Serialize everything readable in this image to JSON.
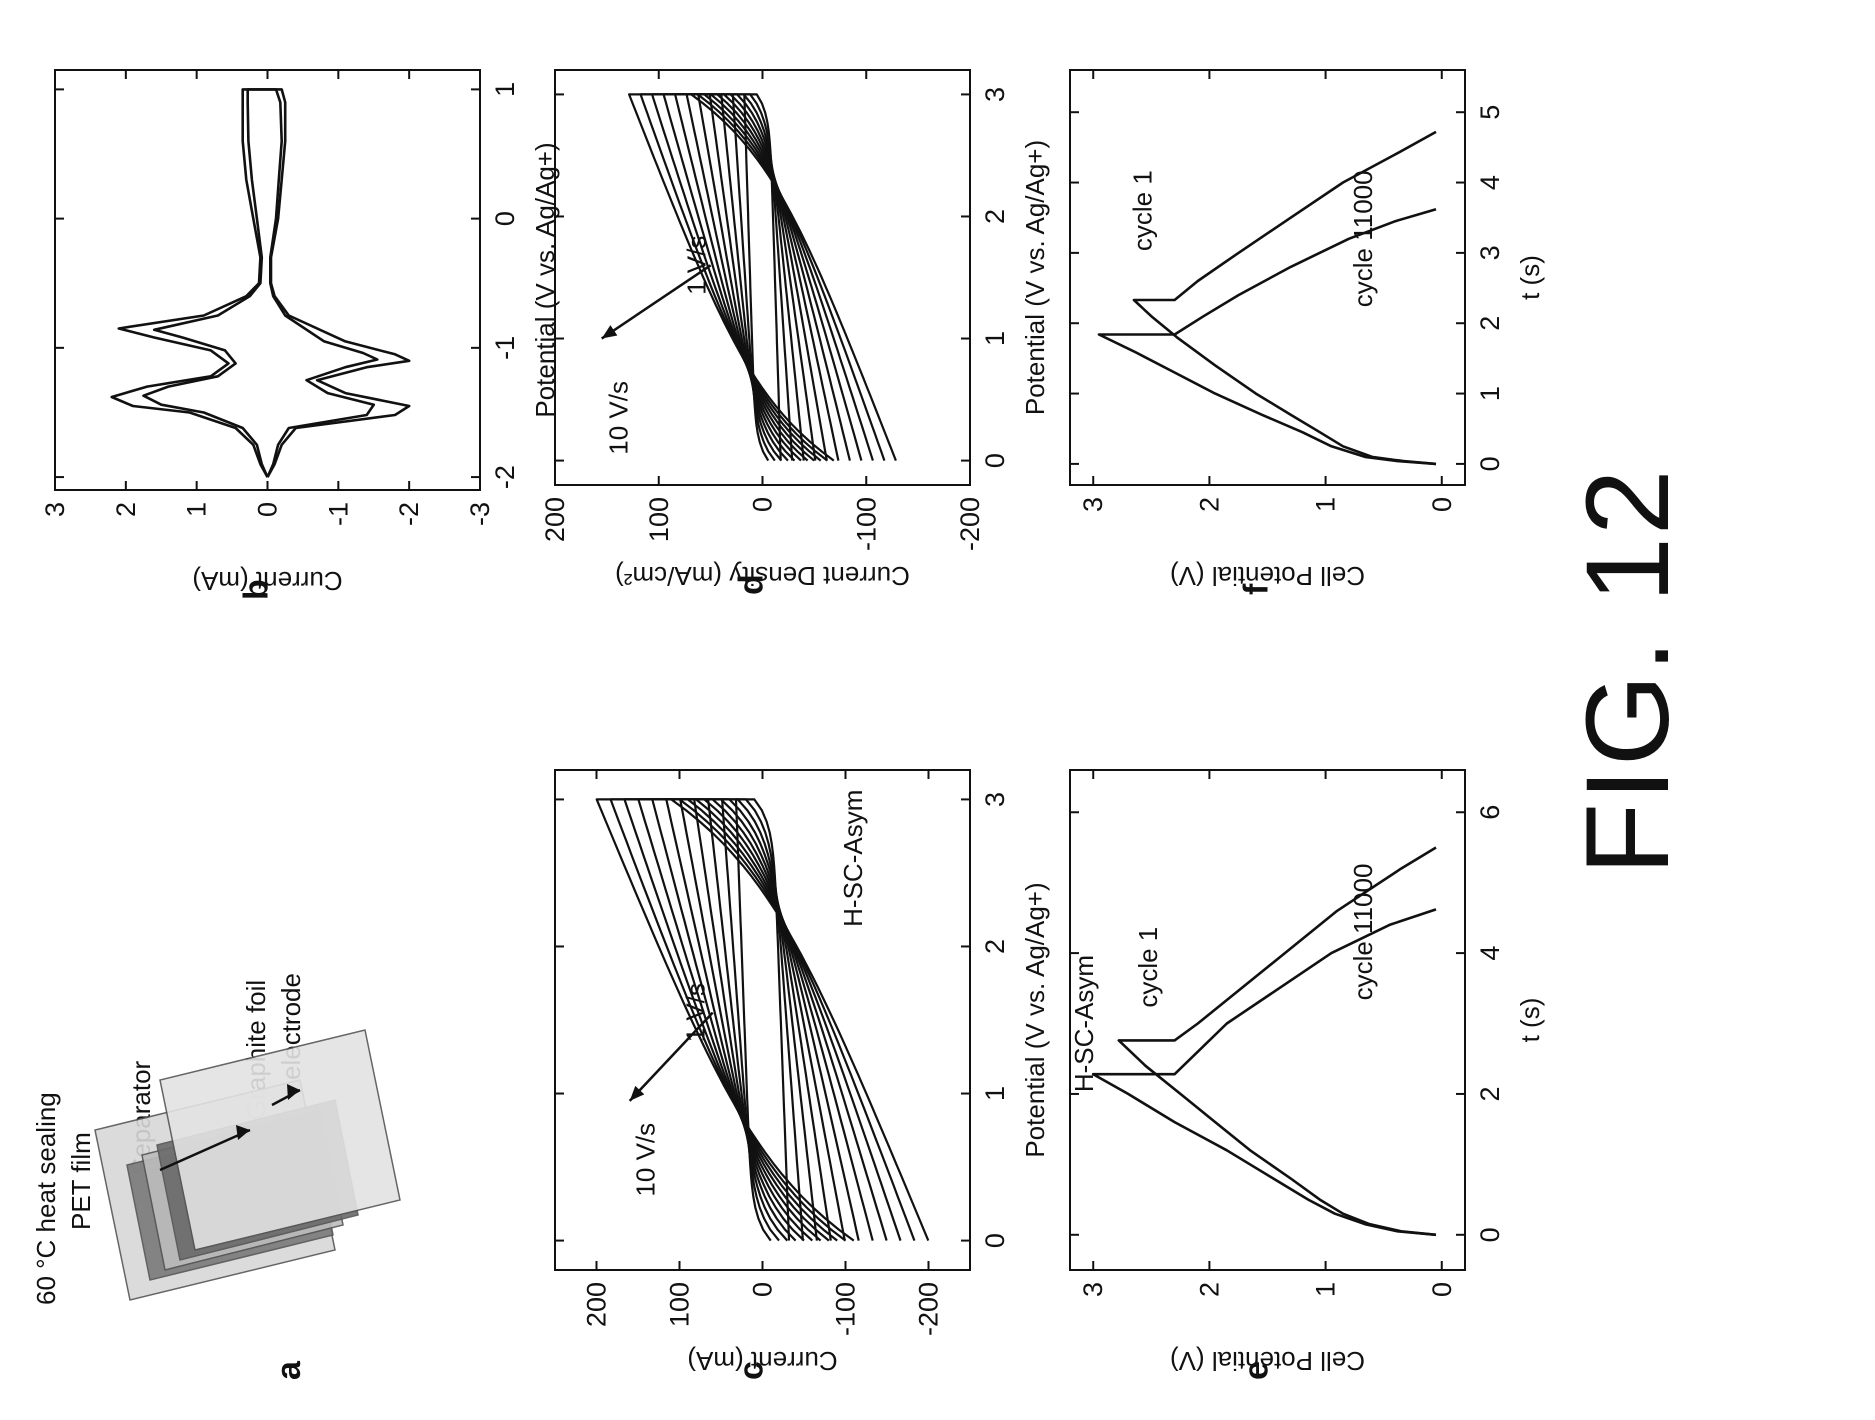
{
  "figure": {
    "label": "FIG. 12"
  },
  "panel_a": {
    "letter": "a",
    "labels": {
      "pet_line1": "60 °C heat sealing",
      "pet_line2": "PET film",
      "separator": "Separator",
      "graphite_line1": "Graphite foil",
      "graphite_line2": "electrode"
    }
  },
  "chart_data": [
    {
      "id": "b",
      "type": "line",
      "panel_label": "b",
      "xlabel": "Potential (V vs. Ag/Ag+)",
      "ylabel": "Current (mA)",
      "xlim": [
        -2.1,
        1.15
      ],
      "ylim": [
        -3,
        3
      ],
      "xticks": [
        -2,
        -1,
        0,
        1
      ],
      "xtick_labels": [
        "-2",
        "-1",
        "0",
        "1"
      ],
      "yticks": [
        -3,
        -2,
        -1,
        0,
        1,
        2,
        3
      ],
      "ytick_labels": [
        "-3",
        "-2",
        "-1",
        "0",
        "1",
        "2",
        "3"
      ],
      "grid": false,
      "annotations": [],
      "series": [
        {
          "x": [
            -2.0,
            -1.9,
            -1.75,
            -1.62,
            -1.5,
            -1.45,
            -1.38,
            -1.3,
            -1.22,
            -1.12,
            -1.02,
            -0.92,
            -0.85,
            -0.75,
            -0.6,
            -0.5,
            -0.3,
            0.0,
            0.3,
            0.6,
            0.9,
            1.0,
            1.0,
            0.9,
            0.6,
            0.3,
            0.0,
            -0.3,
            -0.5,
            -0.6,
            -0.75,
            -0.95,
            -1.05,
            -1.1,
            -1.15,
            -1.25,
            -1.35,
            -1.45,
            -1.52,
            -1.62,
            -1.75,
            -1.9,
            -2.0
          ],
          "y": [
            0.0,
            0.1,
            0.2,
            0.45,
            1.1,
            1.9,
            2.2,
            1.7,
            0.8,
            0.55,
            0.8,
            1.6,
            2.1,
            0.9,
            0.3,
            0.12,
            0.1,
            0.2,
            0.3,
            0.35,
            0.35,
            0.35,
            -0.2,
            -0.25,
            -0.25,
            -0.2,
            -0.15,
            -0.05,
            -0.05,
            -0.1,
            -0.3,
            -1.1,
            -1.8,
            -2.0,
            -1.4,
            -0.7,
            -1.1,
            -2.0,
            -1.8,
            -0.4,
            -0.2,
            -0.1,
            0.0
          ]
        },
        {
          "x": [
            -2.0,
            -1.9,
            -1.75,
            -1.62,
            -1.5,
            -1.44,
            -1.37,
            -1.3,
            -1.22,
            -1.12,
            -1.02,
            -0.92,
            -0.86,
            -0.75,
            -0.6,
            -0.5,
            -0.3,
            0.0,
            0.3,
            0.6,
            0.9,
            1.0,
            1.0,
            0.9,
            0.6,
            0.3,
            0.0,
            -0.3,
            -0.5,
            -0.6,
            -0.75,
            -0.95,
            -1.04,
            -1.09,
            -1.15,
            -1.25,
            -1.35,
            -1.44,
            -1.52,
            -1.62,
            -1.75,
            -1.9,
            -2.0
          ],
          "y": [
            0.0,
            0.08,
            0.15,
            0.35,
            0.9,
            1.5,
            1.75,
            1.4,
            0.7,
            0.45,
            0.6,
            1.2,
            1.6,
            0.7,
            0.25,
            0.1,
            0.08,
            0.15,
            0.22,
            0.27,
            0.28,
            0.28,
            -0.12,
            -0.18,
            -0.2,
            -0.16,
            -0.12,
            -0.04,
            -0.04,
            -0.08,
            -0.25,
            -0.8,
            -1.35,
            -1.55,
            -1.1,
            -0.55,
            -0.85,
            -1.5,
            -1.4,
            -0.3,
            -0.15,
            -0.08,
            0.0
          ]
        }
      ]
    },
    {
      "id": "c",
      "type": "line",
      "panel_label": "c",
      "xlabel": "Potential (V vs. Ag/Ag+)",
      "ylabel": "Current (mA)",
      "xlim": [
        -0.2,
        3.2
      ],
      "ylim": [
        -250,
        250
      ],
      "xticks": [
        0,
        1,
        2,
        3
      ],
      "xtick_labels": [
        "0",
        "1",
        "2",
        "3"
      ],
      "yticks": [
        -200,
        -100,
        0,
        100,
        200
      ],
      "ytick_labels": [
        "-200",
        "-100",
        "0",
        "100",
        "200"
      ],
      "grid": false,
      "annotations": [
        {
          "text": "10 V/s",
          "x": 0.55,
          "y": 130
        },
        {
          "text": "1 V/s",
          "x": 1.55,
          "y": 70
        },
        {
          "text": "H-SC-Asym",
          "x": 2.6,
          "y": -120
        }
      ],
      "arrow": {
        "from": [
          1.55,
          60
        ],
        "to": [
          0.95,
          160
        ]
      },
      "family": {
        "n": 11,
        "xmax": 3.0,
        "imin": 18,
        "imax": 200,
        "cmin": 22,
        "cmax": 90
      }
    },
    {
      "id": "d",
      "type": "line",
      "panel_label": "d",
      "xlabel": "Potential (V vs. Ag/Ag+)",
      "ylabel": "Current Density (mA/cm²)",
      "xlim": [
        -0.2,
        3.2
      ],
      "ylim": [
        -200,
        200
      ],
      "xticks": [
        0,
        1,
        2,
        3
      ],
      "xtick_labels": [
        "0",
        "1",
        "2",
        "3"
      ],
      "yticks": [
        -200,
        -100,
        0,
        100,
        200
      ],
      "ytick_labels": [
        "-200",
        "-100",
        "0",
        "100",
        "200"
      ],
      "grid": false,
      "annotations": [
        {
          "text": "10 V/s",
          "x": 0.35,
          "y": 130
        },
        {
          "text": "1 V/s",
          "x": 1.6,
          "y": 55
        },
        {
          "text": "",
          "x": 0,
          "y": 0
        }
      ],
      "arrow": {
        "from": [
          1.6,
          50
        ],
        "to": [
          1.0,
          155
        ]
      },
      "family": {
        "n": 11,
        "xmax": 3.0,
        "imin": 10,
        "imax": 125,
        "cmin": 12,
        "cmax": 60
      }
    },
    {
      "id": "e",
      "type": "line",
      "panel_label": "e",
      "xlabel": "t (s)",
      "ylabel": "Cell Potential (V)",
      "xlim": [
        -0.5,
        6.6
      ],
      "ylim": [
        -0.2,
        3.2
      ],
      "xticks": [
        0,
        2,
        4,
        6
      ],
      "xtick_labels": [
        "0",
        "2",
        "4",
        "6"
      ],
      "yticks": [
        0,
        1,
        2,
        3
      ],
      "ytick_labels": [
        "0",
        "1",
        "2",
        "3"
      ],
      "grid": false,
      "annotations": [
        {
          "text": "H-SC-Asym",
          "x": 3.0,
          "y": 3.0
        },
        {
          "text": "cycle 1",
          "x": 3.8,
          "y": 2.45
        },
        {
          "text": "cycle 11000",
          "x": 4.3,
          "y": 0.6
        }
      ],
      "series": [
        {
          "name": "cycle 1",
          "x": [
            0,
            0.05,
            0.15,
            0.3,
            0.5,
            0.8,
            1.2,
            1.6,
            2.0,
            2.4,
            2.76,
            2.76,
            3.0,
            3.4,
            4.0,
            4.6,
            5.2,
            5.5
          ],
          "y": [
            0.05,
            0.35,
            0.62,
            0.85,
            1.05,
            1.3,
            1.65,
            1.95,
            2.25,
            2.55,
            2.78,
            2.3,
            2.1,
            1.8,
            1.35,
            0.9,
            0.35,
            0.05
          ]
        },
        {
          "name": "cycle 11000",
          "x": [
            0,
            0.05,
            0.15,
            0.3,
            0.5,
            0.8,
            1.2,
            1.6,
            2.0,
            2.28,
            2.28,
            2.6,
            3.0,
            3.5,
            4.0,
            4.4,
            4.62
          ],
          "y": [
            0.05,
            0.38,
            0.66,
            0.92,
            1.15,
            1.45,
            1.85,
            2.3,
            2.7,
            3.0,
            2.3,
            2.1,
            1.85,
            1.4,
            0.95,
            0.45,
            0.05
          ]
        }
      ]
    },
    {
      "id": "f",
      "type": "line",
      "panel_label": "f",
      "xlabel": "t (s)",
      "ylabel": "Cell Potential (V)",
      "xlim": [
        -0.3,
        5.6
      ],
      "ylim": [
        -0.2,
        3.2
      ],
      "xticks": [
        0,
        1,
        2,
        3,
        4,
        5
      ],
      "xtick_labels": [
        "0",
        "1",
        "2",
        "3",
        "4",
        "5"
      ],
      "yticks": [
        0,
        1,
        2,
        3
      ],
      "ytick_labels": [
        "0",
        "1",
        "2",
        "3"
      ],
      "grid": false,
      "annotations": [
        {
          "text": "cycle 1",
          "x": 3.6,
          "y": 2.5
        },
        {
          "text": "cycle 11000",
          "x": 3.2,
          "y": 0.6
        }
      ],
      "series": [
        {
          "name": "cycle 1",
          "x": [
            0,
            0.04,
            0.1,
            0.25,
            0.45,
            0.7,
            1.0,
            1.4,
            1.8,
            2.1,
            2.33,
            2.33,
            2.6,
            3.0,
            3.5,
            4.0,
            4.4,
            4.72
          ],
          "y": [
            0.05,
            0.33,
            0.6,
            0.85,
            1.05,
            1.3,
            1.6,
            1.95,
            2.28,
            2.5,
            2.65,
            2.3,
            2.1,
            1.75,
            1.3,
            0.85,
            0.4,
            0.05
          ]
        },
        {
          "name": "cycle 11000",
          "x": [
            0,
            0.04,
            0.1,
            0.25,
            0.45,
            0.7,
            1.0,
            1.3,
            1.6,
            1.84,
            1.84,
            2.1,
            2.4,
            2.8,
            3.2,
            3.45,
            3.62
          ],
          "y": [
            0.05,
            0.38,
            0.66,
            0.95,
            1.2,
            1.55,
            1.95,
            2.3,
            2.65,
            2.95,
            2.3,
            2.05,
            1.75,
            1.3,
            0.8,
            0.4,
            0.05
          ]
        }
      ]
    }
  ]
}
